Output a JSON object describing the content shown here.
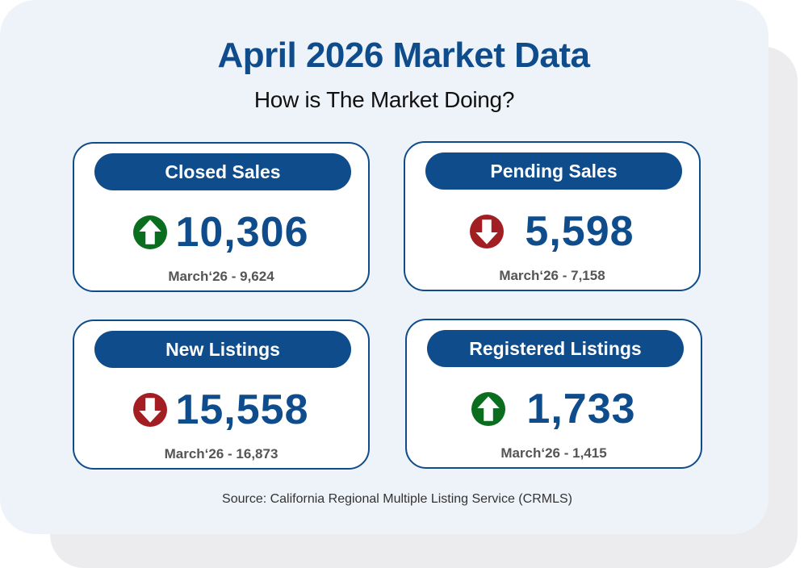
{
  "header": {
    "title": "April 2026 Market Data",
    "subtitle": "How is The Market Doing?"
  },
  "colors": {
    "brand_blue": "#0e4c8c",
    "up_green": "#0b6e1f",
    "down_red": "#a31e22",
    "card_background": "#eef3fa"
  },
  "cards": [
    {
      "label": "Closed Sales",
      "value": "10,306",
      "trend": "up",
      "icon": "arrow-up-icon",
      "previous": "March‘26 - 9,624"
    },
    {
      "label": "Pending Sales",
      "value": "5,598",
      "trend": "down",
      "icon": "arrow-down-icon",
      "previous": "March‘26 - 7,158"
    },
    {
      "label": "New Listings",
      "value": "15,558",
      "trend": "down",
      "icon": "arrow-down-icon",
      "previous": "March‘26 - 16,873"
    },
    {
      "label": "Registered Listings",
      "value": "1,733",
      "trend": "up",
      "icon": "arrow-up-icon",
      "previous": "March‘26 - 1,415"
    }
  ],
  "footer": {
    "source": "Source: California Regional Multiple Listing Service (CRMLS)"
  }
}
